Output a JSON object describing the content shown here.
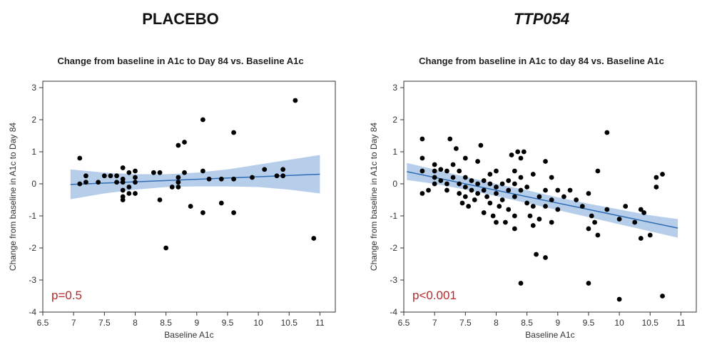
{
  "headings": {
    "left": "PLACEBO",
    "right": "TTP054"
  },
  "colors": {
    "band": "#a9c5e6",
    "line": "#2f6db5",
    "point": "#000000",
    "pvalue": "#b22a2a"
  },
  "chart_data": [
    {
      "type": "scatter",
      "title": "Change from baseline in A1c to Day 84 vs. Baseline A1c",
      "xlabel": "Baseline A1c",
      "ylabel": "Change from baseline in A1c to Day 84",
      "xlim": [
        6.5,
        11.25
      ],
      "ylim": [
        -4,
        3.2
      ],
      "xticks": [
        "6.5",
        "7",
        "7.5",
        "8",
        "8.5",
        "9",
        "9.5",
        "10",
        "10.5",
        "11"
      ],
      "yticks": [
        "3",
        "2",
        "1",
        "0",
        "-1",
        "-2",
        "-3",
        "-4"
      ],
      "annotation": "p=0.5",
      "fit": {
        "x": [
          6.95,
          11.0
        ],
        "y": [
          -0.02,
          0.3
        ]
      },
      "band": {
        "x": [
          6.95,
          7.5,
          8.0,
          8.5,
          9.0,
          9.5,
          10.0,
          10.5,
          11.0
        ],
        "upper": [
          0.45,
          0.35,
          0.3,
          0.3,
          0.35,
          0.45,
          0.6,
          0.75,
          0.9
        ],
        "lower": [
          -0.48,
          -0.3,
          -0.18,
          -0.1,
          -0.08,
          -0.08,
          -0.1,
          -0.18,
          -0.3
        ]
      },
      "points": [
        [
          7.1,
          0.8
        ],
        [
          7.1,
          0.0
        ],
        [
          7.2,
          0.25
        ],
        [
          7.2,
          0.05
        ],
        [
          7.4,
          0.05
        ],
        [
          7.5,
          0.25
        ],
        [
          7.6,
          0.25
        ],
        [
          7.7,
          0.25
        ],
        [
          7.7,
          0.05
        ],
        [
          7.8,
          0.5
        ],
        [
          7.8,
          0.15
        ],
        [
          7.8,
          0.05
        ],
        [
          7.8,
          -0.2
        ],
        [
          7.8,
          -0.4
        ],
        [
          7.8,
          -0.5
        ],
        [
          7.9,
          0.35
        ],
        [
          7.9,
          -0.1
        ],
        [
          7.9,
          -0.3
        ],
        [
          8.0,
          0.4
        ],
        [
          8.0,
          0.2
        ],
        [
          8.0,
          0.05
        ],
        [
          8.0,
          -0.3
        ],
        [
          8.3,
          0.35
        ],
        [
          8.4,
          0.35
        ],
        [
          8.4,
          -0.5
        ],
        [
          8.5,
          -2.0
        ],
        [
          8.6,
          -0.1
        ],
        [
          8.7,
          1.2
        ],
        [
          8.7,
          0.2
        ],
        [
          8.7,
          0.05
        ],
        [
          8.7,
          -0.1
        ],
        [
          8.8,
          1.3
        ],
        [
          8.8,
          0.35
        ],
        [
          8.9,
          -0.7
        ],
        [
          9.1,
          2.0
        ],
        [
          9.1,
          0.4
        ],
        [
          9.1,
          -0.9
        ],
        [
          9.2,
          0.15
        ],
        [
          9.4,
          0.15
        ],
        [
          9.4,
          -0.6
        ],
        [
          9.6,
          1.6
        ],
        [
          9.6,
          0.15
        ],
        [
          9.6,
          -0.9
        ],
        [
          9.9,
          0.2
        ],
        [
          10.1,
          0.45
        ],
        [
          10.3,
          0.25
        ],
        [
          10.4,
          0.45
        ],
        [
          10.4,
          0.25
        ],
        [
          10.6,
          2.6
        ],
        [
          10.9,
          -1.7
        ]
      ]
    },
    {
      "type": "scatter",
      "title": "Change from baseline in A1c to day 84 vs. Baseline A1c",
      "xlabel": "Baseline A1c",
      "ylabel": "Change from baseline in A1c to Day 84",
      "xlim": [
        6.5,
        11.25
      ],
      "ylim": [
        -4,
        3.2
      ],
      "xticks": [
        "6.5",
        "7",
        "7.5",
        "8",
        "8.5",
        "9",
        "9.5",
        "10",
        "10.5",
        "11"
      ],
      "yticks": [
        "3",
        "2",
        "1",
        "0",
        "-1",
        "-2",
        "-3",
        "-4"
      ],
      "annotation": "p<0.001",
      "fit": {
        "x": [
          6.55,
          10.95
        ],
        "y": [
          0.38,
          -1.38
        ]
      },
      "band": {
        "x": [
          6.55,
          7.0,
          7.5,
          8.0,
          8.5,
          9.0,
          9.5,
          10.0,
          10.5,
          10.95
        ],
        "upper": [
          0.65,
          0.45,
          0.22,
          0.0,
          -0.2,
          -0.42,
          -0.62,
          -0.8,
          -0.98,
          -1.1
        ],
        "lower": [
          0.12,
          0.0,
          -0.18,
          -0.38,
          -0.6,
          -0.82,
          -1.04,
          -1.26,
          -1.48,
          -1.68
        ]
      },
      "points": [
        [
          6.8,
          1.4
        ],
        [
          6.8,
          0.8
        ],
        [
          6.8,
          0.4
        ],
        [
          6.8,
          -0.3
        ],
        [
          6.9,
          -0.2
        ],
        [
          7.0,
          0.6
        ],
        [
          7.0,
          0.4
        ],
        [
          7.0,
          0.2
        ],
        [
          7.0,
          0.0
        ],
        [
          7.1,
          0.45
        ],
        [
          7.1,
          0.1
        ],
        [
          7.2,
          0.4
        ],
        [
          7.2,
          0.0
        ],
        [
          7.2,
          -0.2
        ],
        [
          7.25,
          1.4
        ],
        [
          7.3,
          0.6
        ],
        [
          7.3,
          0.2
        ],
        [
          7.35,
          1.1
        ],
        [
          7.4,
          0.4
        ],
        [
          7.4,
          0.0
        ],
        [
          7.4,
          -0.3
        ],
        [
          7.45,
          -0.6
        ],
        [
          7.5,
          0.8
        ],
        [
          7.5,
          0.2
        ],
        [
          7.5,
          -0.1
        ],
        [
          7.5,
          -0.4
        ],
        [
          7.55,
          -0.7
        ],
        [
          7.6,
          0.1
        ],
        [
          7.6,
          -0.2
        ],
        [
          7.65,
          -0.5
        ],
        [
          7.7,
          0.7
        ],
        [
          7.7,
          0.0
        ],
        [
          7.7,
          -0.3
        ],
        [
          7.75,
          1.2
        ],
        [
          7.8,
          0.1
        ],
        [
          7.8,
          -0.2
        ],
        [
          7.8,
          -0.9
        ],
        [
          7.85,
          -0.4
        ],
        [
          7.9,
          0.3
        ],
        [
          7.9,
          0.0
        ],
        [
          7.9,
          -0.6
        ],
        [
          7.95,
          -1.0
        ],
        [
          8.0,
          0.4
        ],
        [
          8.0,
          -0.1
        ],
        [
          8.0,
          -0.3
        ],
        [
          8.0,
          -1.2
        ],
        [
          8.05,
          -0.7
        ],
        [
          8.1,
          0.0
        ],
        [
          8.1,
          -0.5
        ],
        [
          8.15,
          -1.2
        ],
        [
          8.2,
          0.1
        ],
        [
          8.2,
          -0.2
        ],
        [
          8.2,
          -0.8
        ],
        [
          8.25,
          0.9
        ],
        [
          8.3,
          0.4
        ],
        [
          8.3,
          0.0
        ],
        [
          8.3,
          -0.4
        ],
        [
          8.3,
          -1.0
        ],
        [
          8.3,
          -1.4
        ],
        [
          8.35,
          1.0
        ],
        [
          8.4,
          0.8
        ],
        [
          8.4,
          0.2
        ],
        [
          8.4,
          -0.2
        ],
        [
          8.4,
          -3.1
        ],
        [
          8.45,
          1.0
        ],
        [
          8.5,
          -0.1
        ],
        [
          8.5,
          -0.6
        ],
        [
          8.55,
          -1.0
        ],
        [
          8.6,
          0.3
        ],
        [
          8.6,
          -0.7
        ],
        [
          8.6,
          -1.3
        ],
        [
          8.65,
          -2.2
        ],
        [
          8.7,
          -0.4
        ],
        [
          8.7,
          -1.1
        ],
        [
          8.8,
          0.7
        ],
        [
          8.8,
          -0.2
        ],
        [
          8.8,
          -0.7
        ],
        [
          8.8,
          -2.3
        ],
        [
          8.9,
          0.2
        ],
        [
          8.9,
          -0.5
        ],
        [
          8.9,
          -1.2
        ],
        [
          9.0,
          -0.2
        ],
        [
          9.0,
          -0.8
        ],
        [
          9.1,
          -0.4
        ],
        [
          9.2,
          -0.2
        ],
        [
          9.3,
          -0.5
        ],
        [
          9.4,
          -0.7
        ],
        [
          9.5,
          -0.3
        ],
        [
          9.5,
          -1.4
        ],
        [
          9.5,
          -3.1
        ],
        [
          9.55,
          -1.0
        ],
        [
          9.6,
          -1.2
        ],
        [
          9.65,
          0.4
        ],
        [
          9.65,
          -1.6
        ],
        [
          9.8,
          1.6
        ],
        [
          9.8,
          -0.8
        ],
        [
          10.0,
          -1.1
        ],
        [
          10.0,
          -3.6
        ],
        [
          10.1,
          -0.7
        ],
        [
          10.25,
          -1.2
        ],
        [
          10.35,
          -0.8
        ],
        [
          10.35,
          -1.7
        ],
        [
          10.4,
          -0.9
        ],
        [
          10.5,
          -1.6
        ],
        [
          10.6,
          0.2
        ],
        [
          10.6,
          -0.1
        ],
        [
          10.7,
          0.3
        ],
        [
          10.7,
          -3.5
        ]
      ]
    }
  ]
}
